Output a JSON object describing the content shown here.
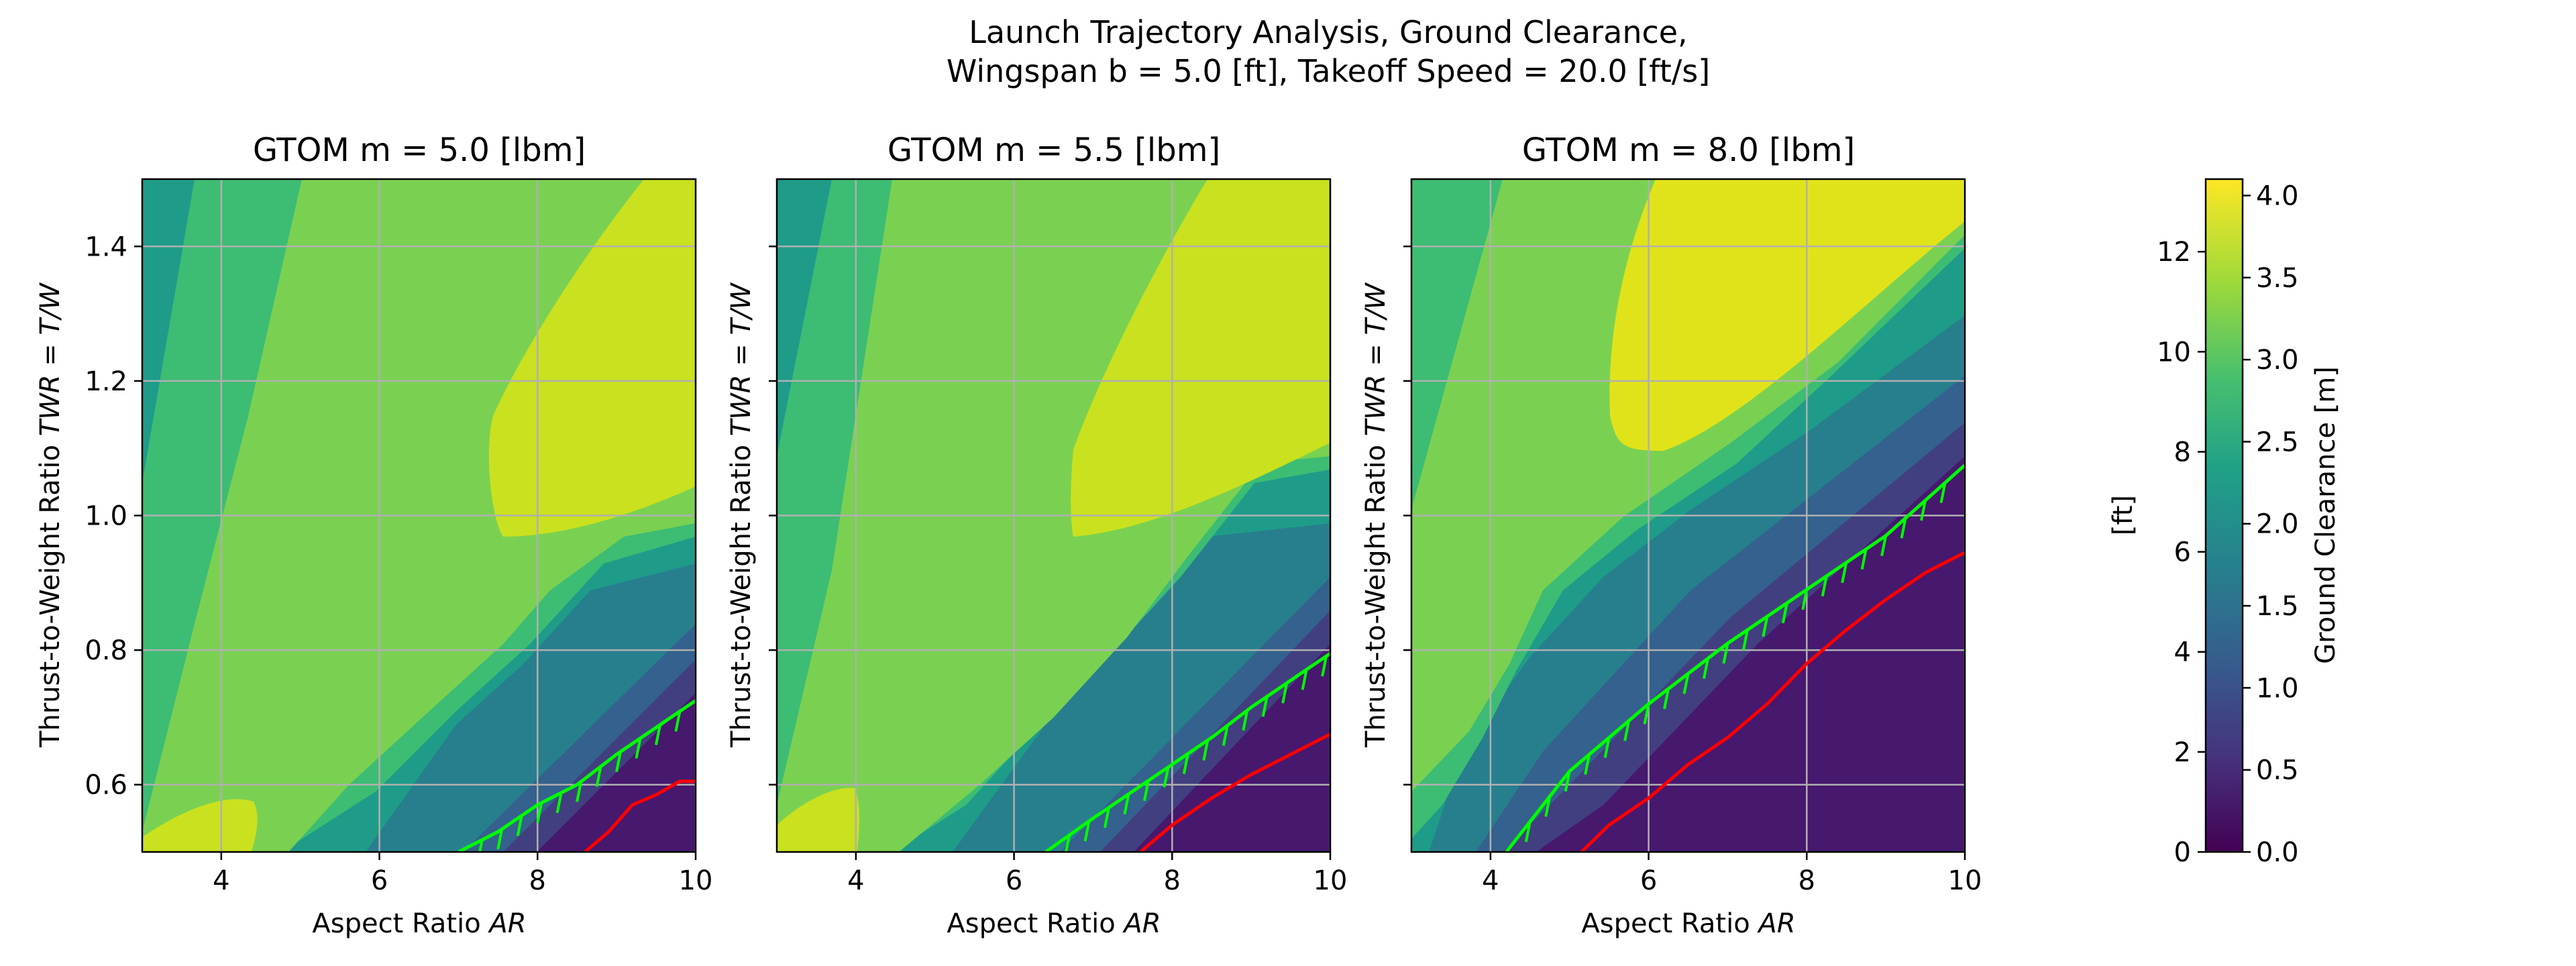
{
  "figure": {
    "title_line1": "Launch Trajectory Analysis, Ground Clearance,",
    "title_line2": "Wingspan b = 5.0 [ft], Takeoff Speed = 20.0 [ft/s]"
  },
  "chart_data": [
    {
      "type": "contour",
      "title": "GTOM m = 5.0 [lbm]",
      "mass_lbm": 5.0,
      "xlabel": "Aspect Ratio AR",
      "ylabel": "Thrust-to-Weight Ratio TWR = T/W",
      "xlim": [
        3,
        10
      ],
      "ylim": [
        0.5,
        1.5
      ],
      "xticks": [
        4,
        6,
        8,
        10
      ],
      "yticks": [
        0.6,
        0.8,
        1.0,
        1.2,
        1.4
      ],
      "grid": true,
      "green_boundary": [
        [
          7.0,
          0.5
        ],
        [
          7.5,
          0.53
        ],
        [
          8.0,
          0.57
        ],
        [
          8.5,
          0.6
        ],
        [
          9.0,
          0.645
        ],
        [
          9.5,
          0.685
        ],
        [
          10.0,
          0.725
        ]
      ],
      "red_boundary": [
        [
          8.6,
          0.5
        ],
        [
          8.9,
          0.53
        ],
        [
          9.2,
          0.57
        ],
        [
          9.5,
          0.585
        ],
        [
          9.8,
          0.605
        ],
        [
          10.0,
          0.605
        ]
      ],
      "peak_region_note": "max clearance ~4.0 m near AR 8-10, TWR 1.0-1.5"
    },
    {
      "type": "contour",
      "title": "GTOM m = 5.5 [lbm]",
      "mass_lbm": 5.5,
      "xlabel": "Aspect Ratio AR",
      "ylabel": "Thrust-to-Weight Ratio TWR = T/W",
      "xlim": [
        3,
        10
      ],
      "ylim": [
        0.5,
        1.5
      ],
      "xticks": [
        4,
        6,
        8,
        10
      ],
      "yticks": [
        0.6,
        0.8,
        1.0,
        1.2,
        1.4
      ],
      "grid": true,
      "green_boundary": [
        [
          6.4,
          0.5
        ],
        [
          7.0,
          0.55
        ],
        [
          7.5,
          0.59
        ],
        [
          8.0,
          0.63
        ],
        [
          8.5,
          0.67
        ],
        [
          9.0,
          0.715
        ],
        [
          9.5,
          0.755
        ],
        [
          10.0,
          0.795
        ]
      ],
      "red_boundary": [
        [
          7.6,
          0.5
        ],
        [
          8.0,
          0.54
        ],
        [
          8.5,
          0.58
        ],
        [
          9.0,
          0.615
        ],
        [
          9.5,
          0.645
        ],
        [
          10.0,
          0.675
        ]
      ],
      "peak_region_note": "max clearance ~4.0 m near AR 7-10, TWR 1.0-1.5"
    },
    {
      "type": "contour",
      "title": "GTOM m = 8.0 [lbm]",
      "mass_lbm": 8.0,
      "xlabel": "Aspect Ratio AR",
      "ylabel": "Thrust-to-Weight Ratio TWR = T/W",
      "xlim": [
        3,
        10
      ],
      "ylim": [
        0.5,
        1.5
      ],
      "xticks": [
        4,
        6,
        8,
        10
      ],
      "yticks": [
        0.6,
        0.8,
        1.0,
        1.2,
        1.4
      ],
      "grid": true,
      "green_boundary": [
        [
          4.2,
          0.5
        ],
        [
          5.0,
          0.62
        ],
        [
          6.0,
          0.72
        ],
        [
          7.0,
          0.81
        ],
        [
          8.0,
          0.89
        ],
        [
          9.0,
          0.97
        ],
        [
          10.0,
          1.075
        ]
      ],
      "red_boundary": [
        [
          5.15,
          0.5
        ],
        [
          5.5,
          0.54
        ],
        [
          6.0,
          0.58
        ],
        [
          6.5,
          0.63
        ],
        [
          7.0,
          0.67
        ],
        [
          7.5,
          0.72
        ],
        [
          8.0,
          0.78
        ],
        [
          8.5,
          0.83
        ],
        [
          9.0,
          0.875
        ],
        [
          9.5,
          0.915
        ],
        [
          10.0,
          0.945
        ]
      ],
      "peak_region_note": "max clearance ~4.1 m near AR 6.5-10, TWR 1.1-1.5"
    }
  ],
  "colorbar": {
    "label_m": "Ground Clearance [m]",
    "label_ft": "[ft]",
    "ticks_m": [
      "0.0",
      "0.5",
      "1.0",
      "1.5",
      "2.0",
      "2.5",
      "3.0",
      "3.5",
      "4.0"
    ],
    "ticks_ft": [
      "0",
      "2",
      "4",
      "6",
      "8",
      "10",
      "12"
    ],
    "range_m": [
      0,
      4.1
    ],
    "levels": [
      0,
      0.5,
      1.0,
      1.5,
      2.0,
      2.5,
      3.0,
      3.5,
      4.0
    ],
    "colors": [
      "#440154",
      "#46327e",
      "#365c8d",
      "#277f8e",
      "#1fa187",
      "#4ac16d",
      "#a0da39",
      "#fde725"
    ]
  },
  "colors": {
    "level_0": "#46186e",
    "level_1": "#413f80",
    "level_2": "#34618d",
    "level_3": "#277f8e",
    "level_4": "#1e9c89",
    "level_5": "#3dbc74",
    "level_6": "#7ad151",
    "level_7": "#cae11f",
    "level_8": "#e1e31a",
    "green_line": "#00ff00",
    "red_line": "#ff0000",
    "grid": "#b0b0b0"
  }
}
